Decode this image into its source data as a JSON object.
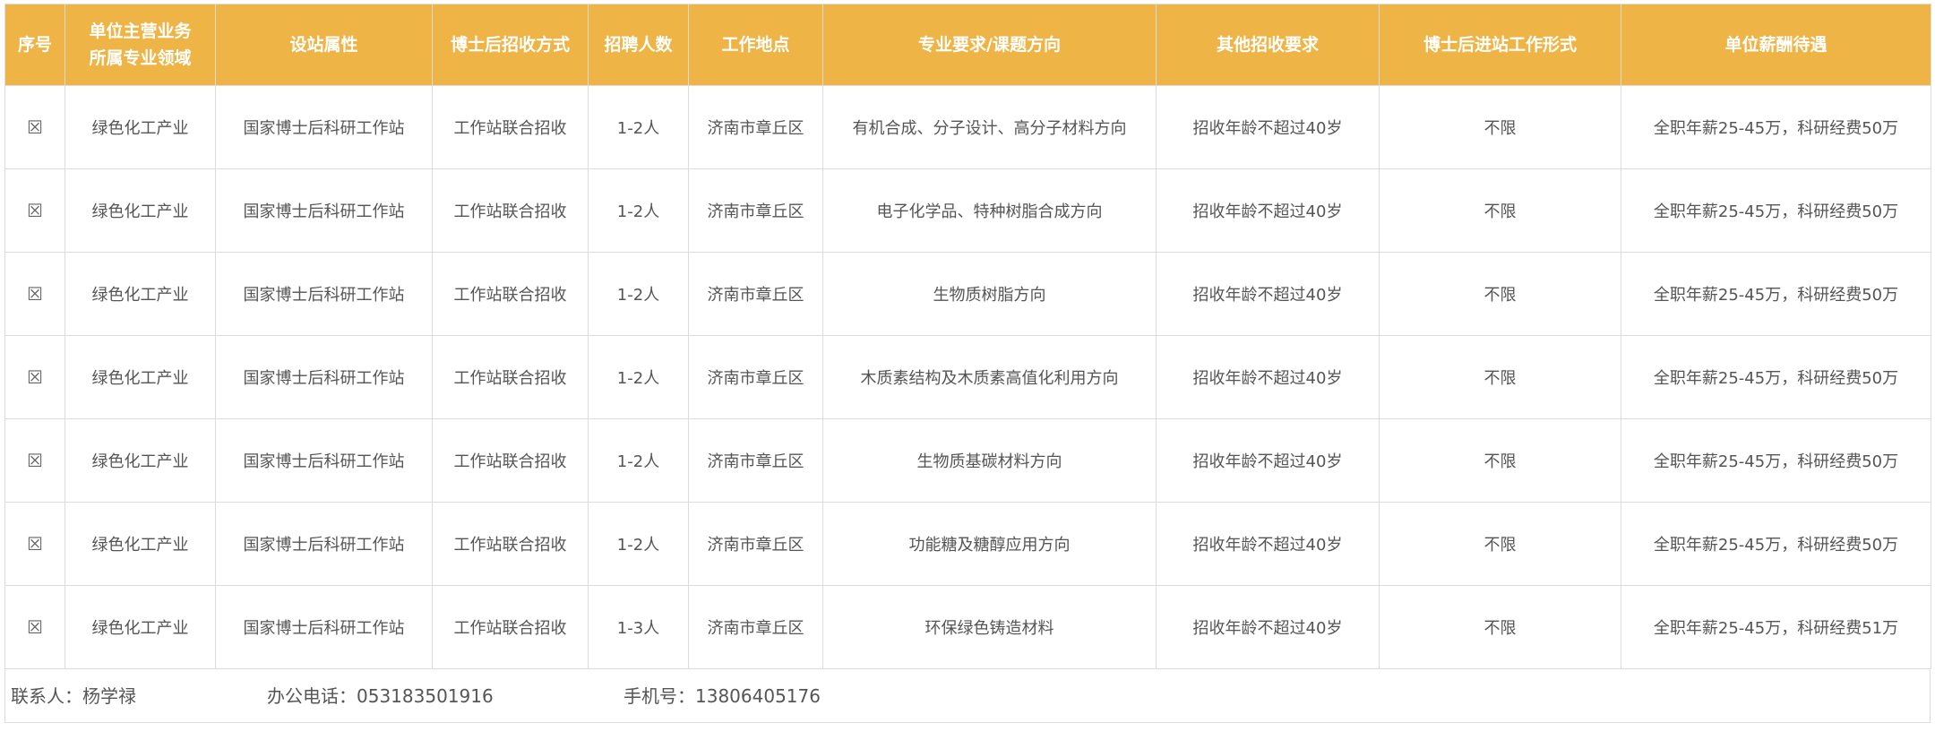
{
  "headers": [
    "序号",
    "单位主营业务\n所属专业领域",
    "设站属性",
    "博士后招收方式",
    "招聘人数",
    "工作地点",
    "专业要求/课题方向",
    "其他招收要求",
    "博士后进站工作形式",
    "单位薪酬待遇"
  ],
  "header_lines": {
    "field_line1": "单位主营业务",
    "field_line2": "所属专业领域"
  },
  "rows": [
    {
      "no_icon": "☒",
      "field": "绿色化工产业",
      "type": "国家博士后科研工作站",
      "method": "工作站联合招收",
      "count": "1-2人",
      "location": "济南市章丘区",
      "direction": "有机合成、分子设计、高分子材料方向",
      "other": "招收年龄不超过40岁",
      "form": "不限",
      "pay": "全职年薪25-45万，科研经费50万"
    },
    {
      "no_icon": "☒",
      "field": "绿色化工产业",
      "type": "国家博士后科研工作站",
      "method": "工作站联合招收",
      "count": "1-2人",
      "location": "济南市章丘区",
      "direction": "电子化学品、特种树脂合成方向",
      "other": "招收年龄不超过40岁",
      "form": "不限",
      "pay": "全职年薪25-45万，科研经费50万"
    },
    {
      "no_icon": "☒",
      "field": "绿色化工产业",
      "type": "国家博士后科研工作站",
      "method": "工作站联合招收",
      "count": "1-2人",
      "location": "济南市章丘区",
      "direction": "生物质树脂方向",
      "other": "招收年龄不超过40岁",
      "form": "不限",
      "pay": "全职年薪25-45万，科研经费50万"
    },
    {
      "no_icon": "☒",
      "field": "绿色化工产业",
      "type": "国家博士后科研工作站",
      "method": "工作站联合招收",
      "count": "1-2人",
      "location": "济南市章丘区",
      "direction": "木质素结构及木质素高值化利用方向",
      "other": "招收年龄不超过40岁",
      "form": "不限",
      "pay": "全职年薪25-45万，科研经费50万"
    },
    {
      "no_icon": "☒",
      "field": "绿色化工产业",
      "type": "国家博士后科研工作站",
      "method": "工作站联合招收",
      "count": "1-2人",
      "location": "济南市章丘区",
      "direction": "生物质基碳材料方向",
      "other": "招收年龄不超过40岁",
      "form": "不限",
      "pay": "全职年薪25-45万，科研经费50万"
    },
    {
      "no_icon": "☒",
      "field": "绿色化工产业",
      "type": "国家博士后科研工作站",
      "method": "工作站联合招收",
      "count": "1-2人",
      "location": "济南市章丘区",
      "direction": "功能糖及糖醇应用方向",
      "other": "招收年龄不超过40岁",
      "form": "不限",
      "pay": "全职年薪25-45万，科研经费50万"
    },
    {
      "no_icon": "☒",
      "field": "绿色化工产业",
      "type": "国家博士后科研工作站",
      "method": "工作站联合招收",
      "count": "1-3人",
      "location": "济南市章丘区",
      "direction": "环保绿色铸造材料",
      "other": "招收年龄不超过40岁",
      "form": "不限",
      "pay": "全职年薪25-45万，科研经费51万"
    }
  ],
  "footer": {
    "contact": "联系人：杨学禄",
    "office_phone": "办公电话：053183501916",
    "mobile": "手机号：13806405176"
  },
  "colors": {
    "header_bg": "#eeb446",
    "header_text": "#ffffff",
    "border": "#dcdcdc"
  }
}
